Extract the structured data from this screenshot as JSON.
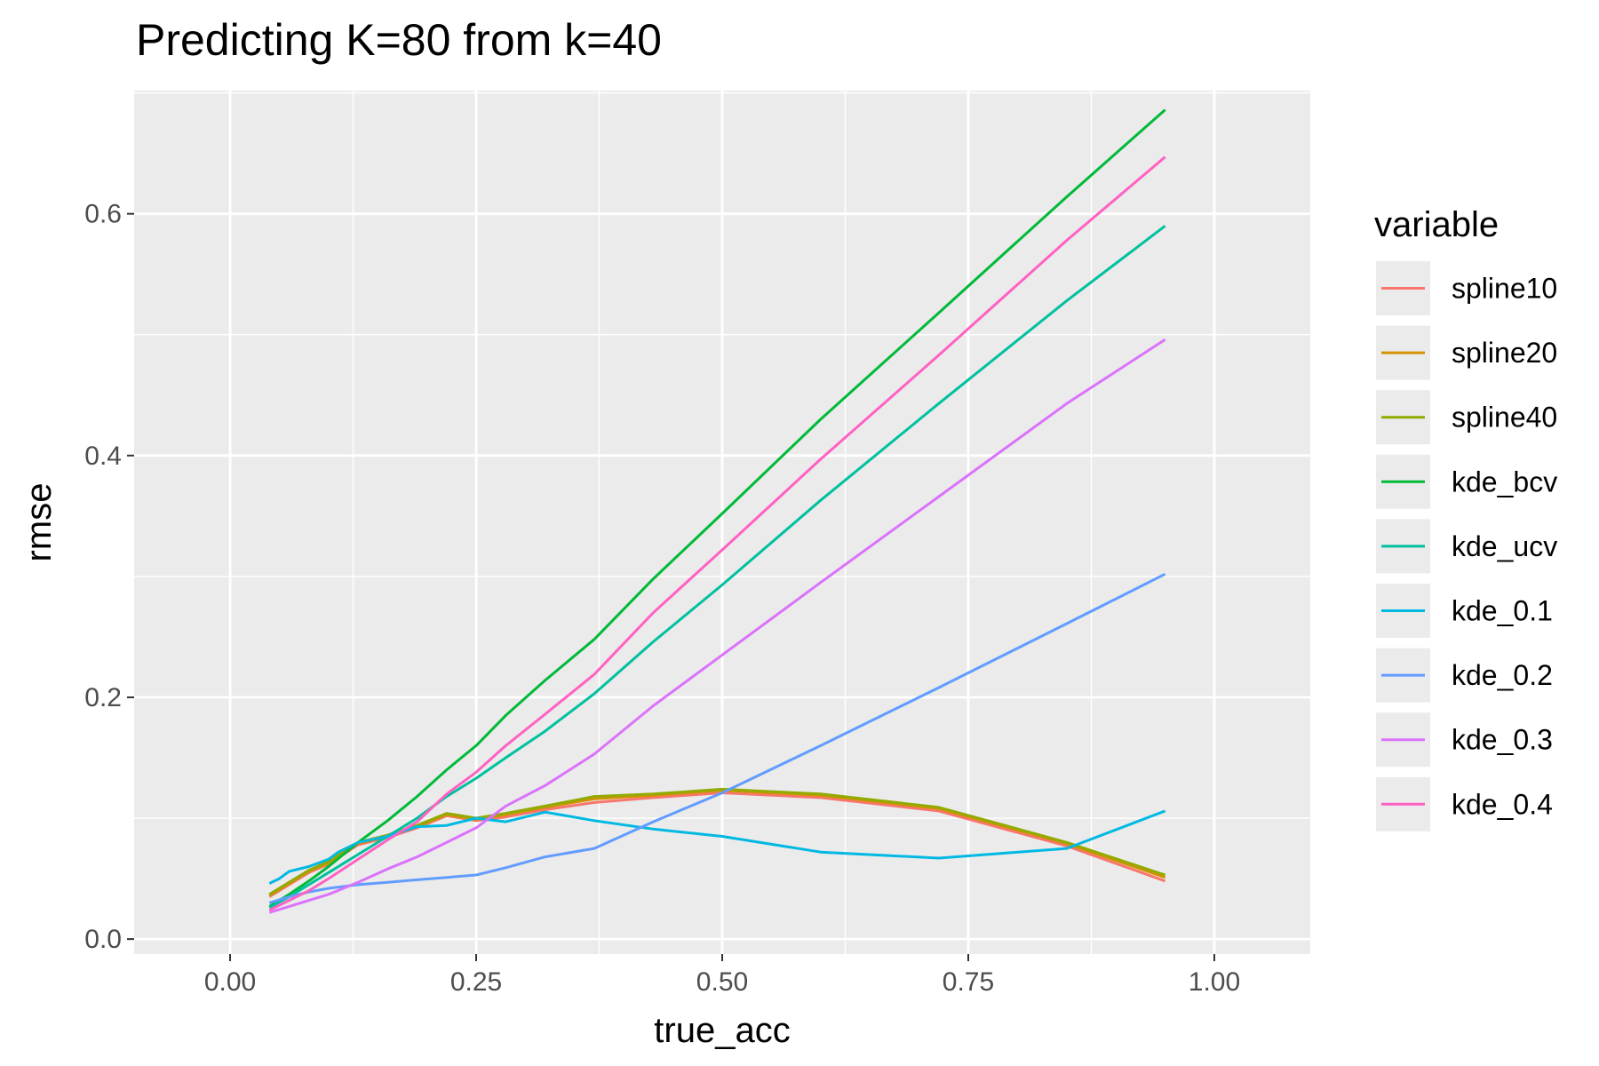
{
  "chart_data": {
    "type": "line",
    "title": "Predicting K=80 from k=40",
    "xlabel": "true_acc",
    "ylabel": "rmse",
    "xlim": [
      -0.0975,
      1.0975
    ],
    "ylim": [
      -0.0124,
      0.7019
    ],
    "x_ticks": [
      0.0,
      0.25,
      0.5,
      0.75,
      1.0
    ],
    "x_tick_labels": [
      "0.00",
      "0.25",
      "0.50",
      "0.75",
      "1.00"
    ],
    "y_ticks": [
      0.0,
      0.2,
      0.4,
      0.6
    ],
    "y_tick_labels": [
      "0.0",
      "0.2",
      "0.4",
      "0.6"
    ],
    "grid": true,
    "background": "#ebebeb",
    "legend_title": "variable",
    "legend_position": "right",
    "series": [
      {
        "name": "spline10",
        "color": "#F8766D",
        "x": [
          0.04,
          0.06,
          0.08,
          0.1,
          0.13,
          0.16,
          0.19,
          0.22,
          0.25,
          0.28,
          0.32,
          0.37,
          0.43,
          0.5,
          0.6,
          0.72,
          0.85,
          0.95
        ],
        "y": [
          0.035,
          0.045,
          0.055,
          0.062,
          0.078,
          0.084,
          0.092,
          0.102,
          0.098,
          0.101,
          0.107,
          0.113,
          0.117,
          0.121,
          0.117,
          0.106,
          0.077,
          0.048
        ]
      },
      {
        "name": "spline20",
        "color": "#D39200",
        "x": [
          0.04,
          0.06,
          0.08,
          0.1,
          0.13,
          0.16,
          0.19,
          0.22,
          0.25,
          0.28,
          0.32,
          0.37,
          0.43,
          0.5,
          0.6,
          0.72,
          0.85,
          0.95
        ],
        "y": [
          0.036,
          0.046,
          0.056,
          0.063,
          0.079,
          0.085,
          0.093,
          0.103,
          0.099,
          0.103,
          0.109,
          0.116,
          0.119,
          0.123,
          0.119,
          0.108,
          0.079,
          0.051
        ]
      },
      {
        "name": "spline40",
        "color": "#93AA00",
        "x": [
          0.04,
          0.06,
          0.08,
          0.1,
          0.13,
          0.16,
          0.19,
          0.22,
          0.25,
          0.28,
          0.32,
          0.37,
          0.43,
          0.5,
          0.6,
          0.72,
          0.85,
          0.95
        ],
        "y": [
          0.037,
          0.047,
          0.057,
          0.064,
          0.08,
          0.086,
          0.094,
          0.104,
          0.1,
          0.104,
          0.11,
          0.118,
          0.12,
          0.124,
          0.12,
          0.109,
          0.08,
          0.053
        ]
      },
      {
        "name": "kde_bcv",
        "color": "#00BA38",
        "x": [
          0.04,
          0.06,
          0.08,
          0.1,
          0.13,
          0.16,
          0.19,
          0.22,
          0.25,
          0.28,
          0.32,
          0.37,
          0.43,
          0.5,
          0.6,
          0.72,
          0.85,
          0.95
        ],
        "y": [
          0.027,
          0.037,
          0.048,
          0.06,
          0.08,
          0.098,
          0.118,
          0.14,
          0.16,
          0.185,
          0.214,
          0.248,
          0.298,
          0.352,
          0.43,
          0.518,
          0.614,
          0.686
        ]
      },
      {
        "name": "kde_ucv",
        "color": "#00C19F",
        "x": [
          0.04,
          0.06,
          0.08,
          0.1,
          0.13,
          0.16,
          0.19,
          0.22,
          0.25,
          0.28,
          0.32,
          0.37,
          0.43,
          0.5,
          0.6,
          0.72,
          0.85,
          0.95
        ],
        "y": [
          0.026,
          0.035,
          0.045,
          0.055,
          0.07,
          0.085,
          0.1,
          0.118,
          0.133,
          0.15,
          0.172,
          0.203,
          0.246,
          0.293,
          0.363,
          0.443,
          0.528,
          0.59
        ]
      },
      {
        "name": "kde_0.1",
        "color": "#00B9E3",
        "x": [
          0.04,
          0.05,
          0.06,
          0.08,
          0.1,
          0.11,
          0.13,
          0.16,
          0.19,
          0.22,
          0.25,
          0.28,
          0.32,
          0.37,
          0.43,
          0.5,
          0.6,
          0.72,
          0.85,
          0.95
        ],
        "y": [
          0.046,
          0.05,
          0.056,
          0.06,
          0.066,
          0.072,
          0.08,
          0.085,
          0.093,
          0.094,
          0.1,
          0.097,
          0.105,
          0.098,
          0.091,
          0.085,
          0.072,
          0.067,
          0.075,
          0.106
        ]
      },
      {
        "name": "kde_0.2",
        "color": "#619CFF",
        "x": [
          0.04,
          0.06,
          0.08,
          0.1,
          0.13,
          0.16,
          0.19,
          0.22,
          0.25,
          0.28,
          0.32,
          0.37,
          0.43,
          0.5,
          0.6,
          0.72,
          0.85,
          0.95
        ],
        "y": [
          0.03,
          0.035,
          0.039,
          0.042,
          0.045,
          0.047,
          0.049,
          0.051,
          0.053,
          0.059,
          0.068,
          0.075,
          0.097,
          0.121,
          0.16,
          0.208,
          0.261,
          0.302
        ]
      },
      {
        "name": "kde_0.3",
        "color": "#DB72FB",
        "x": [
          0.04,
          0.06,
          0.08,
          0.1,
          0.13,
          0.16,
          0.19,
          0.22,
          0.25,
          0.28,
          0.32,
          0.37,
          0.43,
          0.5,
          0.6,
          0.72,
          0.85,
          0.95
        ],
        "y": [
          0.022,
          0.027,
          0.032,
          0.037,
          0.047,
          0.058,
          0.068,
          0.08,
          0.092,
          0.11,
          0.127,
          0.153,
          0.193,
          0.235,
          0.295,
          0.366,
          0.443,
          0.496
        ]
      },
      {
        "name": "kde_0.4",
        "color": "#FF61C3",
        "x": [
          0.04,
          0.06,
          0.08,
          0.1,
          0.13,
          0.16,
          0.19,
          0.22,
          0.25,
          0.28,
          0.32,
          0.37,
          0.43,
          0.5,
          0.6,
          0.72,
          0.85,
          0.95
        ],
        "y": [
          0.024,
          0.032,
          0.04,
          0.05,
          0.066,
          0.082,
          0.097,
          0.12,
          0.138,
          0.16,
          0.186,
          0.219,
          0.27,
          0.322,
          0.397,
          0.483,
          0.578,
          0.647
        ]
      }
    ]
  }
}
